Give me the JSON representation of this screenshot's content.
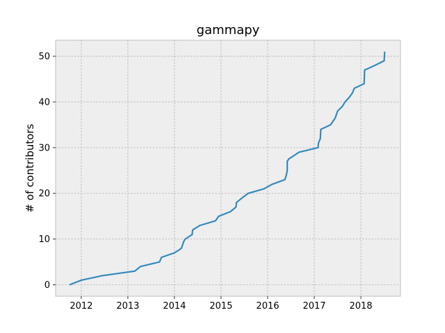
{
  "chart_data": {
    "type": "line",
    "title": "gammapy",
    "xlabel": "",
    "ylabel": "# of contributors",
    "xlim": [
      2011.45,
      2018.85
    ],
    "ylim": [
      -2.5,
      53.5
    ],
    "xticks": [
      2012,
      2013,
      2014,
      2015,
      2016,
      2017,
      2018
    ],
    "yticks": [
      0,
      10,
      20,
      30,
      40,
      50
    ],
    "grid": true,
    "style": {
      "background": "#eeeeee",
      "frame": "#bcbcbc",
      "grid": "#b2b2b2",
      "line": "#348abd"
    },
    "series": [
      {
        "x": [
          2011.75,
          2012.0,
          2012.45,
          2012.8,
          2013.15,
          2013.27,
          2013.68,
          2013.72,
          2014.0,
          2014.08,
          2014.15,
          2014.2,
          2014.23,
          2014.38,
          2014.39,
          2014.55,
          2014.88,
          2014.95,
          2015.2,
          2015.32,
          2015.33,
          2015.45,
          2015.58,
          2015.92,
          2016.1,
          2016.37,
          2016.4,
          2016.42,
          2016.42,
          2016.45,
          2016.6,
          2016.67,
          2017.08,
          2017.09,
          2017.13,
          2017.14,
          2017.35,
          2017.45,
          2017.5,
          2017.6,
          2017.66,
          2017.75,
          2017.82,
          2017.86,
          2018.07,
          2018.08,
          2018.15,
          2018.3,
          2018.5,
          2018.51
        ],
        "y": [
          0,
          1,
          2,
          2.5,
          3,
          4,
          5,
          6,
          7,
          7.5,
          8,
          9.5,
          10,
          11,
          12,
          13,
          14,
          15,
          16,
          17,
          18,
          19,
          20,
          21,
          22,
          23,
          24,
          25,
          27,
          27.5,
          28.5,
          29,
          30,
          31,
          32,
          34,
          35,
          36.5,
          38,
          39,
          40,
          41,
          42,
          43,
          44,
          47,
          47.3,
          48,
          49,
          51
        ]
      }
    ]
  }
}
